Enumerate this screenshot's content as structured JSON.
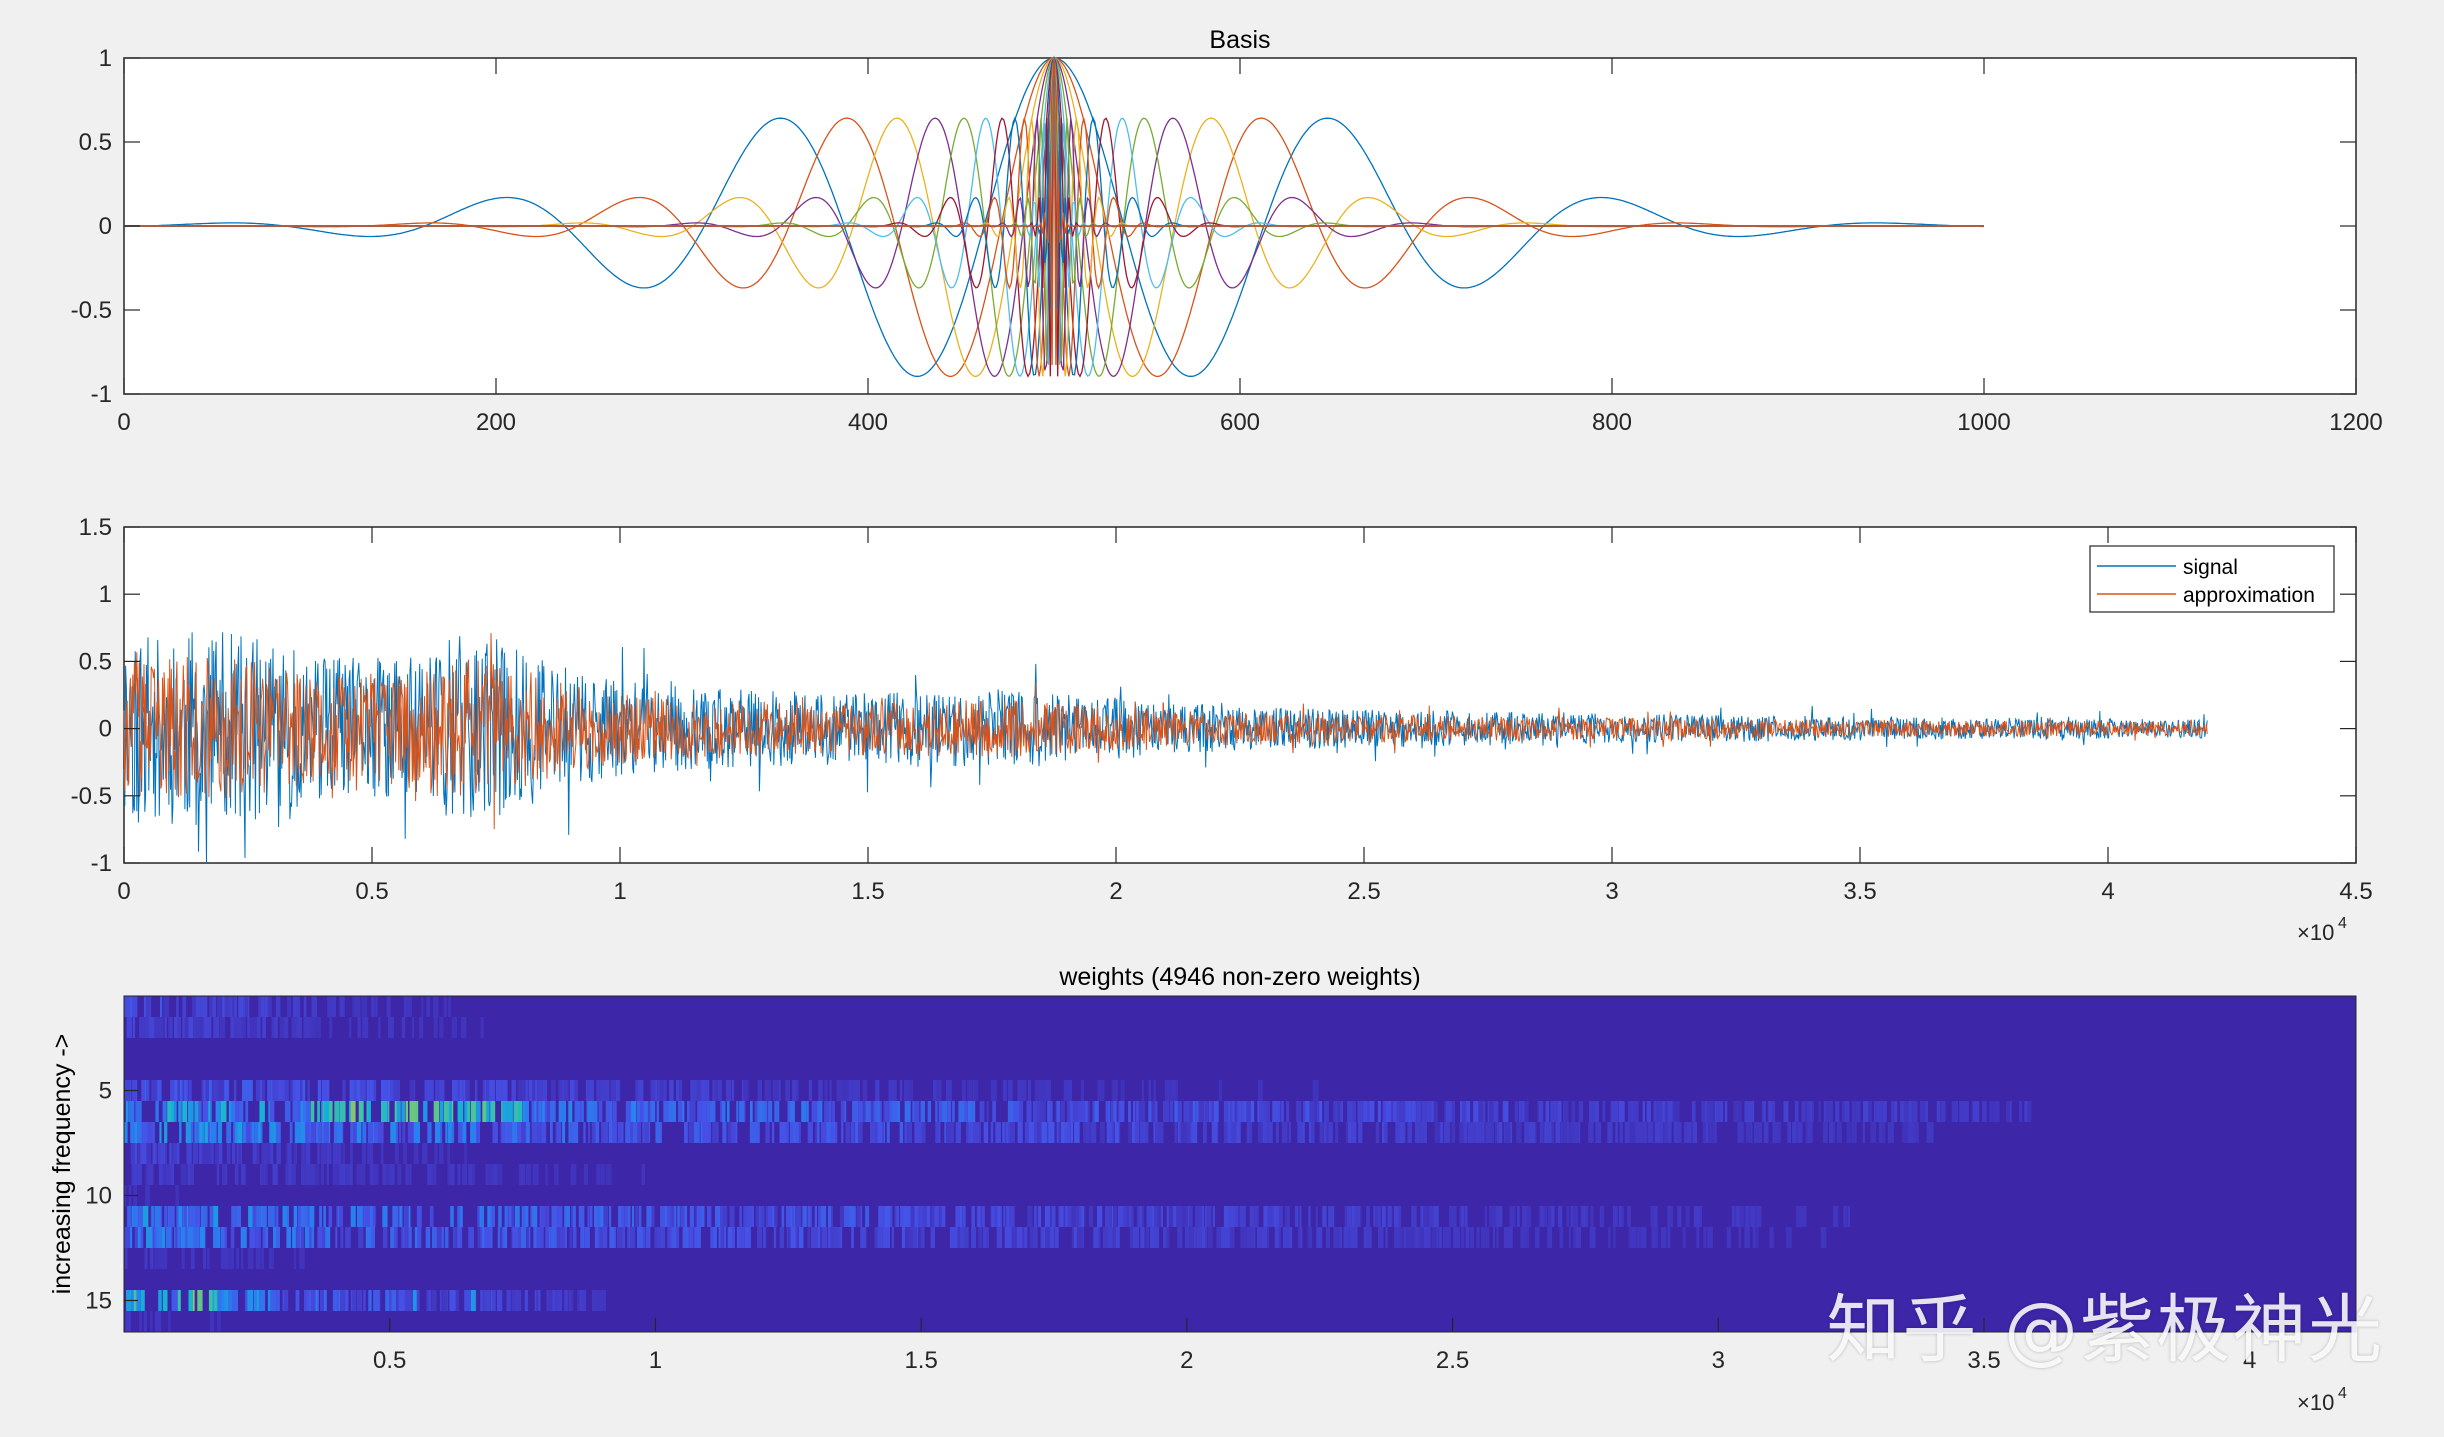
{
  "chart_data": [
    {
      "type": "line",
      "title": "Basis",
      "xlabel": "",
      "ylabel": "",
      "xlim": [
        0,
        1200
      ],
      "ylim": [
        -1,
        1
      ],
      "x_ticks": [
        0,
        200,
        400,
        600,
        800,
        1000,
        1200
      ],
      "y_ticks": [
        -1,
        -0.5,
        0,
        0.5,
        1
      ],
      "x_range_of_data": [
        0,
        1000
      ],
      "center": 500,
      "series_count": 16,
      "grid": false,
      "legend": "none"
    },
    {
      "type": "line",
      "title": "",
      "xlabel": "",
      "ylabel": "",
      "xlim": [
        0,
        45000
      ],
      "ylim": [
        -1,
        1.5
      ],
      "x_ticks": [
        0,
        0.5,
        1,
        1.5,
        2,
        2.5,
        3,
        3.5,
        4,
        4.5
      ],
      "x_exponent": "×10",
      "x_exponent_power": "4",
      "y_ticks": [
        -1,
        -0.5,
        0,
        0.5,
        1,
        1.5
      ],
      "x_range_of_data": [
        0,
        42000
      ],
      "series": [
        {
          "name": "signal",
          "color": "#0072bd"
        },
        {
          "name": "approximation",
          "color": "#d95319"
        }
      ],
      "legend": "top-right",
      "grid": false
    },
    {
      "type": "heatmap",
      "title": "weights (4946 non-zero weights)",
      "xlabel": "",
      "ylabel": "increasing frequency ->",
      "xlim": [
        0,
        42000
      ],
      "rows": 16,
      "x_ticks": [
        0.5,
        1,
        1.5,
        2,
        2.5,
        3,
        3.5,
        4
      ],
      "x_exponent": "×10",
      "x_exponent_power": "4",
      "y_ticks": [
        5,
        10,
        15
      ],
      "colormap": "parula",
      "background_color": "#3e26a8"
    }
  ],
  "watermark": "知乎 @紫极神光"
}
